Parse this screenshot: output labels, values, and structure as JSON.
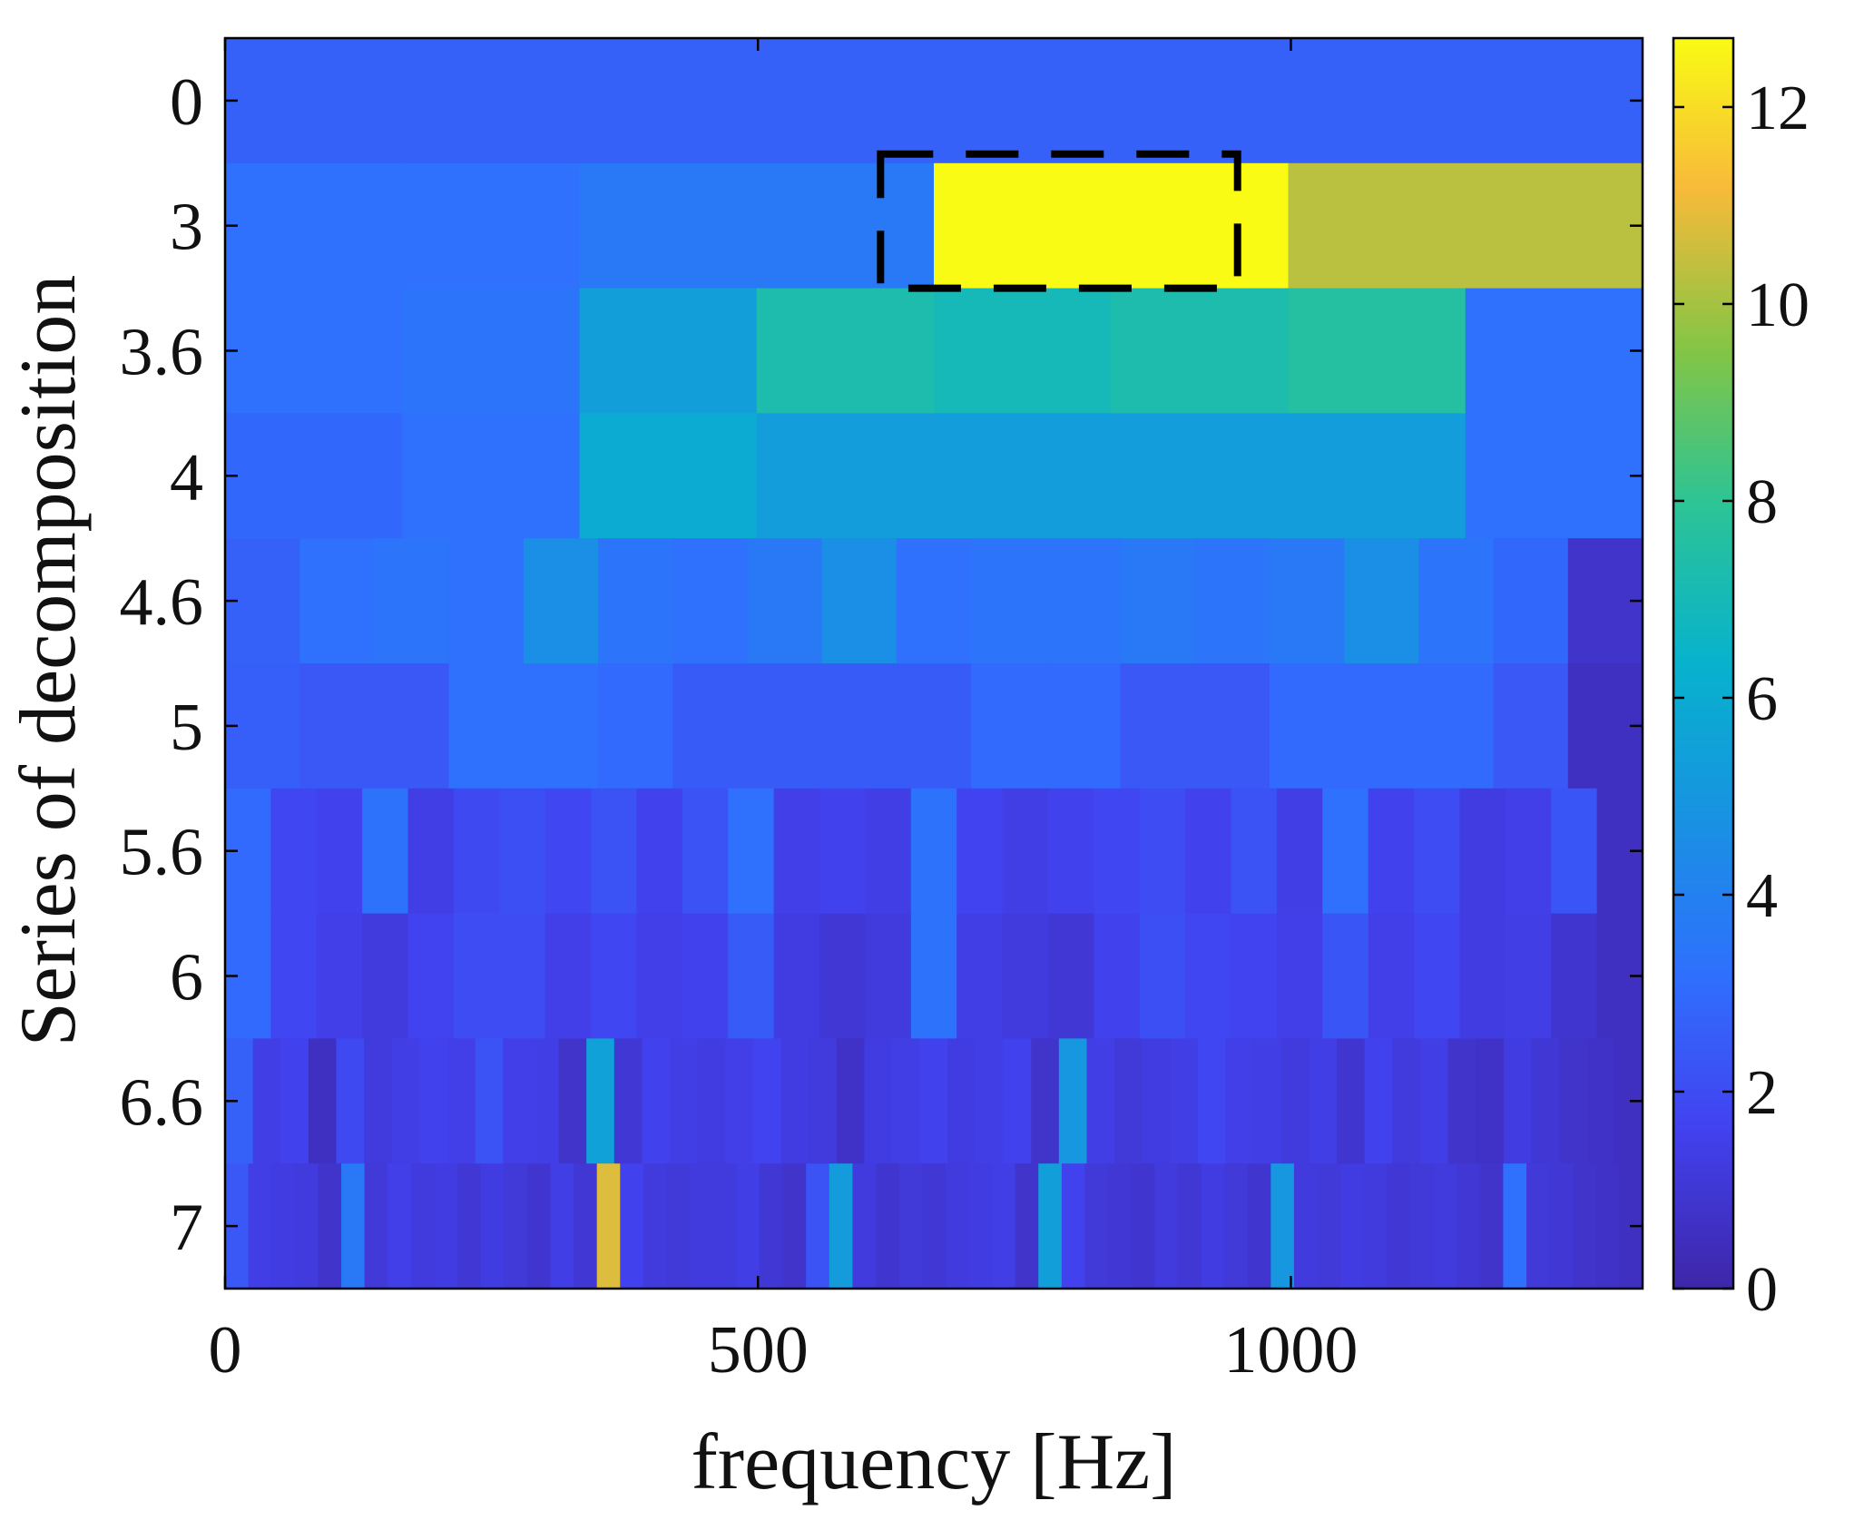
{
  "chart_data": {
    "type": "heatmap",
    "title": "",
    "xlabel": "frequency [Hz]",
    "ylabel": "Series of decomposition",
    "xlim": [
      0,
      1330
    ],
    "x_ticks": [
      "0",
      "500",
      "1000"
    ],
    "y_ticks": [
      "0",
      "3",
      "3.6",
      "4",
      "4.6",
      "5",
      "5.6",
      "6",
      "6.6",
      "7"
    ],
    "colorbar": {
      "min": 0,
      "max": 12.7,
      "ticks": [
        "0",
        "2",
        "4",
        "6",
        "8",
        "10",
        "12"
      ]
    },
    "rows": [
      {
        "level": "0",
        "values": [
          2.7
        ]
      },
      {
        "level": "3",
        "values": [
          3.2,
          3.2,
          3.6,
          3.6,
          12.7,
          12.7,
          10.3,
          10.3
        ]
      },
      {
        "level": "3.6",
        "values": [
          3.2,
          3.4,
          5.4,
          7.3,
          7.0,
          7.3,
          7.6,
          3.2
        ]
      },
      {
        "level": "4",
        "values": [
          2.9,
          3.2,
          6.0,
          5.3,
          5.3,
          5.3,
          5.3,
          3.2
        ]
      },
      {
        "level": "4.6",
        "values": [
          2.7,
          3.2,
          3.4,
          3.2,
          4.6,
          3.4,
          3.2,
          3.6,
          4.6,
          3.2,
          3.4,
          3.4,
          3.6,
          3.4,
          3.6,
          4.6,
          3.4,
          2.9,
          0.8
        ]
      },
      {
        "level": "5",
        "values": [
          2.6,
          2.4,
          2.4,
          3.2,
          3.2,
          3.0,
          2.5,
          2.5,
          2.5,
          2.5,
          3.0,
          3.0,
          2.4,
          2.4,
          3.0,
          3.0,
          3.0,
          2.4,
          0.6
        ]
      },
      {
        "level": "5.6",
        "values": [
          3.0,
          1.8,
          1.6,
          3.3,
          1.4,
          1.9,
          2.1,
          1.8,
          2.2,
          1.6,
          2.2,
          3.2,
          1.5,
          1.6,
          1.4,
          3.3,
          1.7,
          1.4,
          1.6,
          1.8,
          2.0,
          1.6,
          2.2,
          1.4,
          3.2,
          1.6,
          2.0,
          1.3,
          1.5,
          2.3,
          0.6
        ]
      },
      {
        "level": "6",
        "values": [
          3.0,
          1.8,
          1.5,
          1.2,
          1.7,
          2.0,
          2.0,
          1.5,
          1.8,
          1.5,
          1.6,
          2.5,
          1.3,
          1.0,
          1.2,
          3.3,
          1.4,
          1.2,
          1.0,
          1.6,
          2.1,
          1.8,
          1.7,
          1.5,
          2.3,
          1.5,
          1.8,
          1.3,
          1.4,
          0.9,
          0.6
        ]
      },
      {
        "level": "6.6",
        "values": [
          2.7,
          1.4,
          1.6,
          0.6,
          1.9,
          1.2,
          1.4,
          1.6,
          1.5,
          2.2,
          1.5,
          1.4,
          0.8,
          5.5,
          1.0,
          1.6,
          1.4,
          1.3,
          1.5,
          1.7,
          1.3,
          1.2,
          0.7,
          1.3,
          1.4,
          1.6,
          1.3,
          1.4,
          1.6,
          0.8,
          5.0,
          1.4,
          1.1,
          1.3,
          1.4,
          1.8,
          1.5,
          1.4,
          1.2,
          1.4,
          0.9,
          1.6,
          1.2,
          1.4,
          0.8,
          0.7,
          1.3,
          1.0,
          0.8,
          0.7,
          0.6
        ]
      },
      {
        "level": "7",
        "values": [
          2.4,
          1.4,
          1.3,
          1.2,
          0.8,
          3.6,
          1.1,
          1.5,
          1.2,
          1.3,
          1.0,
          1.3,
          1.1,
          0.9,
          1.4,
          1.0,
          10.8,
          1.6,
          1.2,
          1.1,
          1.2,
          1.2,
          1.4,
          1.0,
          0.8,
          2.2,
          5.2,
          1.2,
          0.9,
          1.1,
          1.0,
          1.2,
          1.3,
          1.4,
          0.8,
          5.4,
          1.6,
          1.1,
          1.0,
          0.9,
          1.2,
          1.0,
          1.3,
          1.1,
          0.9,
          5.0,
          1.2,
          1.1,
          1.3,
          1.2,
          1.0,
          1.1,
          1.2,
          1.0,
          0.8,
          3.2,
          1.1,
          1.0,
          0.8,
          0.7,
          0.6
        ]
      }
    ],
    "annotation": {
      "shape": "dashed-rectangle",
      "x_range": [
        615,
        950
      ],
      "row": "3"
    },
    "grid": false,
    "colormap": "parula"
  }
}
